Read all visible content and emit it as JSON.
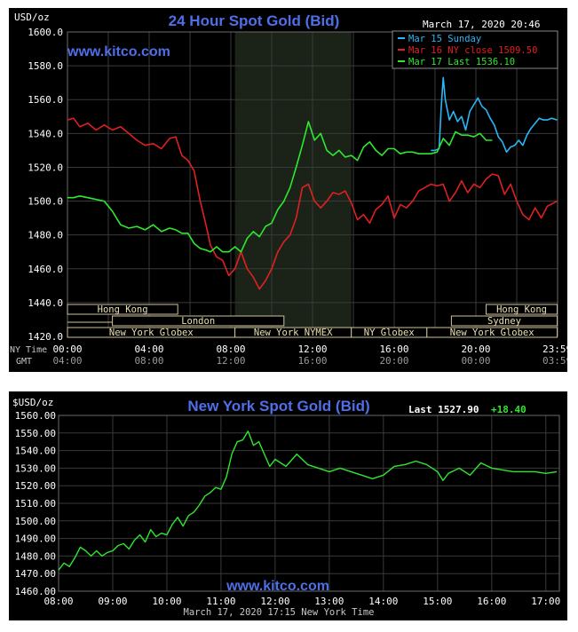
{
  "panel1": {
    "title": "24 Hour Spot Gold (Bid)",
    "unit": "USD/oz",
    "date": "March 17, 2020 20:46",
    "watermark": "www.kitco.com",
    "row_labels": [
      "NY Time",
      "GMT"
    ],
    "markets": [
      {
        "name": "Hong Kong"
      },
      {
        "name": "London"
      },
      {
        "name": "New York Globex"
      },
      {
        "name": "New York NYMEX"
      },
      {
        "name": "NY Globex"
      },
      {
        "name": "Hong Kong"
      },
      {
        "name": "Sydney"
      },
      {
        "name": "New York Globex"
      }
    ]
  },
  "panel2": {
    "title": "New York Spot Gold (Bid)",
    "last_label": "Last 1527.90",
    "change_label": "+18.40",
    "watermark": "www.kitco.com",
    "footer": "March 17, 2020 17:15 New York Time",
    "unit": "$USD/oz"
  },
  "chart_data": [
    {
      "type": "line",
      "title": "24 Hour Spot Gold (Bid)",
      "ylabel": "USD/oz",
      "ylim": [
        1420,
        1600
      ],
      "yticks": [
        "1600.0",
        "1580.0",
        "1560.0",
        "1540.0",
        "1520.0",
        "1500.0",
        "1480.0",
        "1460.0",
        "1440.0",
        "1420.0"
      ],
      "x_ticks_ny": [
        "00:00",
        "04:00",
        "08:00",
        "12:00",
        "16:00",
        "20:00",
        "23:59"
      ],
      "x_ticks_gmt": [
        "04:00",
        "08:00",
        "12:00",
        "16:00",
        "20:00",
        "00:00",
        "03:59"
      ],
      "xlim_hours": [
        0,
        24
      ],
      "shaded_hours": [
        8.2,
        13.9
      ],
      "grid": true,
      "legend_position": "top-right",
      "colors": {
        "mar15": "#29b6f6",
        "mar16": "#e02020",
        "mar17": "#2ee82e"
      },
      "series": [
        {
          "name": "Mar 15 Sunday",
          "legend": "Mar 15 Sunday",
          "color": "#29b6f6",
          "x": [
            17.8,
            18.0,
            18.2,
            18.3,
            18.4,
            18.5,
            18.7,
            18.9,
            19.1,
            19.3,
            19.5,
            19.7,
            19.9,
            20.1,
            20.3,
            20.5,
            20.7,
            20.9,
            21.1,
            21.3,
            21.5,
            21.7,
            21.9,
            22.1,
            22.3,
            22.5,
            22.7,
            22.9,
            23.1,
            23.3,
            23.5,
            23.7,
            23.98
          ],
          "y": [
            1530,
            1530,
            1531,
            1555,
            1573,
            1560,
            1548,
            1553,
            1547,
            1550,
            1542,
            1553,
            1557,
            1561,
            1556,
            1554,
            1549,
            1545,
            1538,
            1535,
            1529,
            1532,
            1533,
            1536,
            1533,
            1539,
            1543,
            1546,
            1549,
            1548,
            1548,
            1549,
            1548
          ]
        },
        {
          "name": "Mar 16 NY close 1509.50",
          "legend": "Mar 16 NY close 1509.50",
          "color": "#e02020",
          "x": [
            0.0,
            0.3,
            0.6,
            1.0,
            1.4,
            1.8,
            2.2,
            2.6,
            3.0,
            3.4,
            3.8,
            4.2,
            4.6,
            5.0,
            5.3,
            5.6,
            5.9,
            6.2,
            6.5,
            6.8,
            7.0,
            7.3,
            7.6,
            7.9,
            8.2,
            8.5,
            8.8,
            9.1,
            9.4,
            9.7,
            10.0,
            10.3,
            10.6,
            10.9,
            11.2,
            11.5,
            11.8,
            12.1,
            12.4,
            12.7,
            13.0,
            13.3,
            13.6,
            13.9,
            14.2,
            14.5,
            14.8,
            15.1,
            15.4,
            15.7,
            16.0,
            16.3,
            16.6,
            16.9,
            17.2,
            17.5,
            17.8,
            18.1,
            18.4,
            18.7,
            19.0,
            19.3,
            19.6,
            19.9,
            20.2,
            20.5,
            20.8,
            21.1,
            21.4,
            21.7,
            22.0,
            22.3,
            22.6,
            22.9,
            23.2,
            23.5,
            23.98
          ],
          "y": [
            1548,
            1549,
            1544,
            1546,
            1542,
            1545,
            1542,
            1544,
            1540,
            1536,
            1533,
            1534,
            1531,
            1537,
            1538,
            1527,
            1524,
            1518,
            1500,
            1485,
            1474,
            1467,
            1465,
            1456,
            1460,
            1470,
            1460,
            1455,
            1448,
            1453,
            1460,
            1470,
            1476,
            1480,
            1490,
            1508,
            1510,
            1500,
            1496,
            1500,
            1505,
            1504,
            1506,
            1499,
            1489,
            1492,
            1487,
            1495,
            1498,
            1503,
            1490,
            1498,
            1496,
            1500,
            1506,
            1508,
            1510,
            1509,
            1510,
            1500,
            1505,
            1512,
            1505,
            1510,
            1508,
            1513,
            1516,
            1515,
            1504,
            1510,
            1500,
            1492,
            1489,
            1496,
            1490,
            1497,
            1500
          ]
        },
        {
          "name": "Mar 17 Last 1536.10",
          "legend": "Mar 17 Last 1536.10",
          "color": "#2ee82e",
          "x": [
            0.0,
            0.3,
            0.6,
            1.0,
            1.4,
            1.8,
            2.2,
            2.6,
            3.0,
            3.4,
            3.8,
            4.2,
            4.6,
            5.0,
            5.3,
            5.6,
            5.9,
            6.2,
            6.5,
            6.8,
            7.0,
            7.3,
            7.6,
            7.9,
            8.2,
            8.5,
            8.8,
            9.1,
            9.4,
            9.7,
            10.0,
            10.3,
            10.6,
            10.9,
            11.2,
            11.5,
            11.8,
            12.1,
            12.4,
            12.7,
            13.0,
            13.3,
            13.6,
            13.9,
            14.2,
            14.5,
            14.8,
            15.1,
            15.4,
            15.7,
            16.0,
            16.3,
            16.6,
            16.9,
            17.2,
            17.5,
            17.8,
            18.1,
            18.4,
            18.7,
            19.0,
            19.3,
            19.6,
            19.9,
            20.2,
            20.5,
            20.8
          ],
          "y": [
            1502,
            1502,
            1503,
            1502,
            1501,
            1500,
            1494,
            1486,
            1484,
            1485,
            1483,
            1486,
            1482,
            1484,
            1483,
            1481,
            1481,
            1475,
            1472,
            1471,
            1470,
            1473,
            1470,
            1470,
            1473,
            1470,
            1478,
            1482,
            1479,
            1485,
            1487,
            1495,
            1500,
            1508,
            1520,
            1533,
            1547,
            1536,
            1540,
            1530,
            1527,
            1530,
            1526,
            1527,
            1524,
            1532,
            1535,
            1530,
            1527,
            1531,
            1531,
            1528,
            1529,
            1529,
            1528,
            1528,
            1528,
            1529,
            1537,
            1533,
            1541,
            1539,
            1539,
            1538,
            1540,
            1536,
            1536
          ]
        }
      ]
    },
    {
      "type": "line",
      "title": "New York Spot Gold (Bid)",
      "ylabel": "$USD/oz",
      "ylim": [
        1460,
        1560
      ],
      "yticks": [
        "1560.00",
        "1550.00",
        "1540.00",
        "1530.00",
        "1520.00",
        "1510.00",
        "1500.00",
        "1490.00",
        "1480.00",
        "1470.00",
        "1460.00"
      ],
      "x_ticks": [
        "08:00",
        "09:00",
        "10:00",
        "11:00",
        "12:00",
        "13:00",
        "14:00",
        "15:00",
        "16:00",
        "17:00"
      ],
      "xlim_hours": [
        8.0,
        17.25
      ],
      "grid": true,
      "series": [
        {
          "name": "New York Spot Gold (Bid)",
          "color": "#2ee82e",
          "x": [
            8.0,
            8.1,
            8.2,
            8.3,
            8.4,
            8.5,
            8.6,
            8.7,
            8.8,
            8.9,
            9.0,
            9.1,
            9.2,
            9.3,
            9.4,
            9.5,
            9.6,
            9.7,
            9.8,
            9.9,
            10.0,
            10.1,
            10.2,
            10.3,
            10.4,
            10.5,
            10.6,
            10.7,
            10.8,
            10.9,
            11.0,
            11.1,
            11.2,
            11.3,
            11.4,
            11.5,
            11.6,
            11.7,
            11.8,
            11.9,
            12.0,
            12.2,
            12.4,
            12.6,
            12.8,
            13.0,
            13.2,
            13.4,
            13.6,
            13.8,
            14.0,
            14.2,
            14.4,
            14.6,
            14.8,
            15.0,
            15.1,
            15.2,
            15.4,
            15.6,
            15.8,
            16.0,
            16.2,
            16.4,
            16.6,
            16.8,
            17.0,
            17.2
          ],
          "y": [
            1472,
            1476,
            1474,
            1479,
            1485,
            1483,
            1480,
            1483,
            1480,
            1482,
            1483,
            1486,
            1487,
            1484,
            1489,
            1492,
            1488,
            1495,
            1491,
            1493,
            1492,
            1498,
            1502,
            1497,
            1503,
            1505,
            1509,
            1514,
            1516,
            1519,
            1518,
            1525,
            1538,
            1545,
            1546,
            1551,
            1543,
            1545,
            1538,
            1531,
            1535,
            1531,
            1538,
            1532,
            1530,
            1528,
            1530,
            1528,
            1526,
            1524,
            1526,
            1531,
            1532,
            1534,
            1532,
            1528,
            1523,
            1527,
            1530,
            1526,
            1533,
            1530,
            1529,
            1528,
            1528,
            1528,
            1527,
            1528
          ]
        }
      ]
    }
  ]
}
